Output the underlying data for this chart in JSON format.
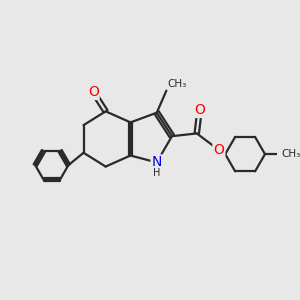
{
  "background_color": "#e8e8e8",
  "bond_color": "#2a2a2a",
  "bond_width": 1.6,
  "atom_colors": {
    "O": "#ff0000",
    "N": "#0000ee",
    "H": "#2a2a2a",
    "C": "#2a2a2a"
  },
  "font_size_atoms": 10,
  "font_size_small": 8,
  "figsize": [
    3.0,
    3.0
  ],
  "dpi": 100,
  "xlim": [
    0,
    10
  ],
  "ylim": [
    0,
    10
  ]
}
